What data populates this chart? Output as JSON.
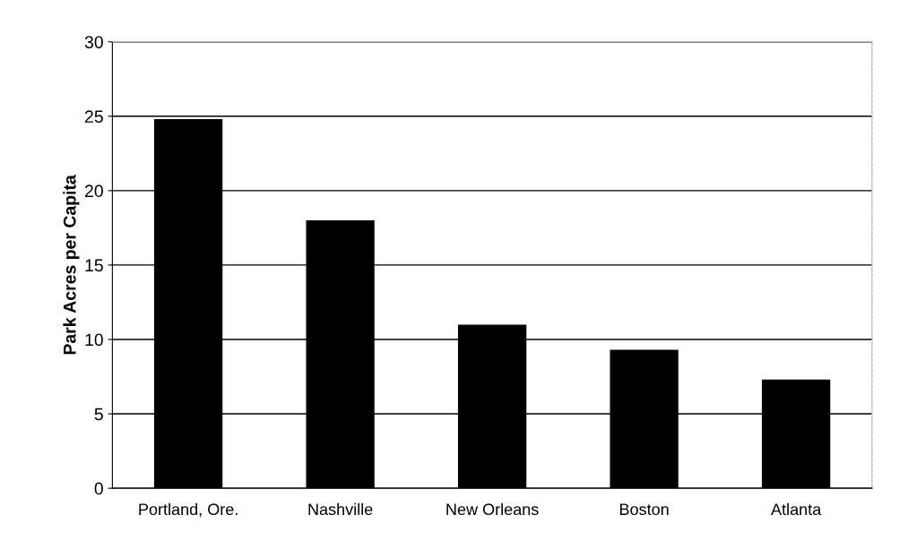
{
  "chart_data": {
    "type": "bar",
    "ylabel": "Park Acres per Capita",
    "categories": [
      "Portland, Ore.",
      "Nashville",
      "New Orleans",
      "Boston",
      "Atlanta"
    ],
    "values": [
      24.8,
      18.0,
      11.0,
      9.3,
      7.3
    ],
    "color": "#000000",
    "ylim": [
      0,
      30
    ],
    "yticks": [
      0,
      5,
      10,
      15,
      20,
      25,
      30
    ],
    "grid": "y"
  }
}
